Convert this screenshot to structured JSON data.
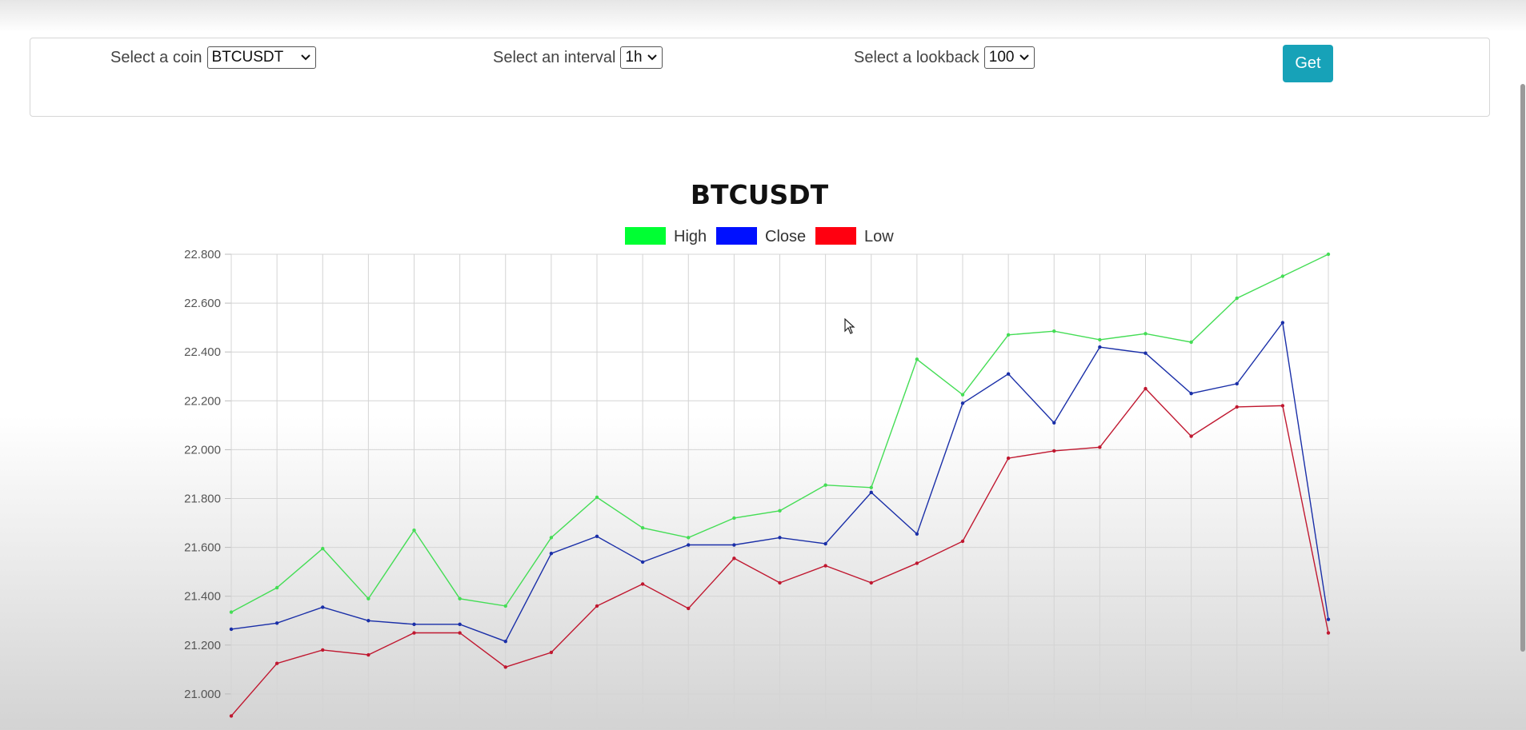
{
  "controls": {
    "coin_label": "Select a coin",
    "coin_value": "BTCUSDT",
    "interval_label": "Select an interval",
    "interval_value": "1h",
    "lookback_label": "Select a lookback",
    "lookback_value": "100",
    "get_label": "Get"
  },
  "icons": {
    "dropdown": "chevron-down-icon",
    "cursor": "mouse-pointer-icon"
  },
  "colors": {
    "button": "#17a2b8",
    "high": "#00ff33",
    "close": "#0010ff",
    "low": "#ff0010"
  },
  "chart_data": {
    "type": "line",
    "title": "BTCUSDT",
    "xlabel": "",
    "ylabel": "",
    "ylim": [
      20.9,
      22.8
    ],
    "y_ticks": [
      "22.800",
      "22.600",
      "22.400",
      "22.200",
      "22.000",
      "21.800",
      "21.600",
      "21.400",
      "21.200",
      "21.000"
    ],
    "y_tick_values": [
      22.8,
      22.6,
      22.4,
      22.2,
      22.0,
      21.8,
      21.6,
      21.4,
      21.2,
      21.0
    ],
    "grid": true,
    "legend_position": "top-center",
    "series": [
      {
        "name": "High",
        "color": "#00ff33",
        "line_color": "#44dd55",
        "values": [
          21.335,
          21.435,
          21.595,
          21.39,
          21.67,
          21.39,
          21.36,
          21.64,
          21.805,
          21.68,
          21.64,
          21.72,
          21.75,
          21.855,
          21.845,
          22.37,
          22.225,
          22.47,
          22.485,
          22.45,
          22.475,
          22.44,
          22.62,
          22.71,
          22.8
        ]
      },
      {
        "name": "Close",
        "color": "#0010ff",
        "line_color": "#1a2fa8",
        "values": [
          21.265,
          21.29,
          21.355,
          21.3,
          21.285,
          21.285,
          21.215,
          21.575,
          21.645,
          21.54,
          21.61,
          21.61,
          21.64,
          21.615,
          21.825,
          21.655,
          22.19,
          22.31,
          22.11,
          22.42,
          22.395,
          22.23,
          22.27,
          22.52,
          21.305
        ]
      },
      {
        "name": "Low",
        "color": "#ff0010",
        "line_color": "#c01830",
        "values": [
          20.91,
          21.125,
          21.18,
          21.16,
          21.25,
          21.25,
          21.11,
          21.17,
          21.36,
          21.45,
          21.35,
          21.555,
          21.455,
          21.525,
          21.455,
          21.535,
          21.625,
          21.965,
          21.995,
          22.01,
          22.25,
          22.055,
          22.175,
          22.18,
          21.25
        ]
      }
    ]
  }
}
